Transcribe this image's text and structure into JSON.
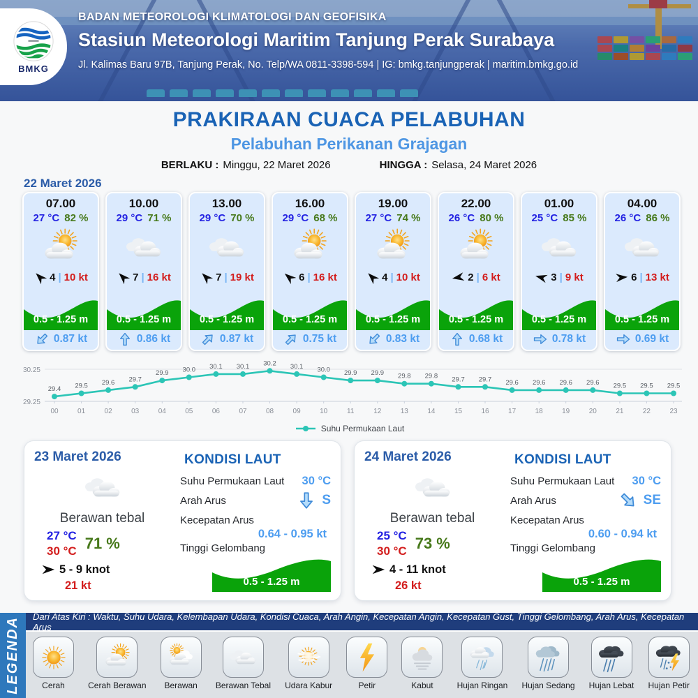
{
  "header": {
    "agency": "BADAN METEOROLOGI KLIMATOLOGI DAN GEOFISIKA",
    "station": "Stasiun Meteorologi Maritim Tanjung Perak Surabaya",
    "contact": "Jl. Kalimas Baru 97B, Tanjung Perak, No. Telp/WA 0811-3398-594 | IG: bmkg.tanjungperak | maritim.bmkg.go.id",
    "logo_text": "BMKG"
  },
  "title": {
    "main": "PRAKIRAAN CUACA PELABUHAN",
    "subtitle": "Pelabuhan Perikanan Grajagan",
    "berlaku_label": "BERLAKU :",
    "berlaku_value": "Minggu, 22 Maret 2026",
    "hingga_label": "HINGGA :",
    "hingga_value": "Selasa, 24 Maret 2026"
  },
  "forecast_date": "22 Maret 2026",
  "hourly_cards": [
    {
      "time": "07.00",
      "temp": "27 °C",
      "humidity": "82 %",
      "icon": "cerah-berawan",
      "wind_deg": 225,
      "wind_speed": "4",
      "gust": "10 kt",
      "wave": "0.5 - 1.25 m",
      "current_deg": 135,
      "current": "0.87 kt"
    },
    {
      "time": "10.00",
      "temp": "29 °C",
      "humidity": "71 %",
      "icon": "berawan-tebal",
      "wind_deg": 225,
      "wind_speed": "7",
      "gust": "16 kt",
      "wave": "0.5 - 1.25 m",
      "current_deg": 270,
      "current": "0.86 kt"
    },
    {
      "time": "13.00",
      "temp": "29 °C",
      "humidity": "70 %",
      "icon": "berawan-tebal",
      "wind_deg": 225,
      "wind_speed": "7",
      "gust": "19 kt",
      "wave": "0.5 - 1.25 m",
      "current_deg": 315,
      "current": "0.87 kt"
    },
    {
      "time": "16.00",
      "temp": "29 °C",
      "humidity": "68 %",
      "icon": "cerah-berawan",
      "wind_deg": 220,
      "wind_speed": "6",
      "gust": "16 kt",
      "wave": "0.5 - 1.25 m",
      "current_deg": 315,
      "current": "0.75 kt"
    },
    {
      "time": "19.00",
      "temp": "27 °C",
      "humidity": "74 %",
      "icon": "cerah-berawan",
      "wind_deg": 225,
      "wind_speed": "4",
      "gust": "10 kt",
      "wave": "0.5 - 1.25 m",
      "current_deg": 135,
      "current": "0.83 kt"
    },
    {
      "time": "22.00",
      "temp": "26 °C",
      "humidity": "80 %",
      "icon": "cerah-berawan",
      "wind_deg": 170,
      "wind_speed": "2",
      "gust": "6 kt",
      "wave": "0.5 - 1.25 m",
      "current_deg": 270,
      "current": "0.68 kt"
    },
    {
      "time": "01.00",
      "temp": "25 °C",
      "humidity": "85 %",
      "icon": "berawan-tebal",
      "wind_deg": 195,
      "wind_speed": "3",
      "gust": "9 kt",
      "wave": "0.5 - 1.25 m",
      "current_deg": 0,
      "current": "0.78 kt"
    },
    {
      "time": "04.00",
      "temp": "26 °C",
      "humidity": "86 %",
      "icon": "berawan-tebal",
      "wind_deg": 355,
      "wind_speed": "6",
      "gust": "13 kt",
      "wave": "0.5 - 1.25 m",
      "current_deg": 0,
      "current": "0.69 kt"
    }
  ],
  "chart_data": {
    "type": "line",
    "x": [
      "00",
      "01",
      "02",
      "03",
      "04",
      "05",
      "06",
      "07",
      "08",
      "09",
      "10",
      "11",
      "12",
      "13",
      "14",
      "15",
      "16",
      "17",
      "18",
      "19",
      "20",
      "21",
      "22",
      "23"
    ],
    "series": [
      {
        "name": "Suhu Permukaan Laut",
        "values": [
          29.4,
          29.5,
          29.6,
          29.7,
          29.9,
          30.0,
          30.1,
          30.1,
          30.2,
          30.1,
          30.0,
          29.9,
          29.9,
          29.8,
          29.8,
          29.7,
          29.7,
          29.6,
          29.6,
          29.6,
          29.6,
          29.5,
          29.5,
          29.5
        ]
      }
    ],
    "ylim": [
      29.25,
      30.25
    ],
    "line_color": "#2cc5b6",
    "legend_position": "bottom",
    "grid": "horizontal-only"
  },
  "day_cards": [
    {
      "date": "23 Maret 2026",
      "icon": "berawan-tebal",
      "condition": "Berawan tebal",
      "temp_min": "27 °C",
      "temp_max": "30 °C",
      "humidity": "71 %",
      "wind_range": "5  - 9 knot",
      "gust": "21 kt",
      "sea": {
        "heading": "KONDISI LAUT",
        "sst_label": "Suhu Permukaan Laut",
        "sst": "30 °C",
        "arah_label": "Arah Arus",
        "arah": "S",
        "arah_deg": 90,
        "kecepatan_label": "Kecepatan Arus",
        "kecepatan": "0.64  - 0.95 kt",
        "gelombang_label": "Tinggi Gelombang",
        "gelombang": "0.5 - 1.25 m"
      }
    },
    {
      "date": "24 Maret 2026",
      "icon": "berawan-tebal",
      "condition": "Berawan tebal",
      "temp_min": "25 °C",
      "temp_max": "30 °C",
      "humidity": "73 %",
      "wind_range": "4  - 11 knot",
      "gust": "26 kt",
      "sea": {
        "heading": "KONDISI LAUT",
        "sst_label": "Suhu Permukaan Laut",
        "sst": "30 °C",
        "arah_label": "Arah Arus",
        "arah": "SE",
        "arah_deg": 45,
        "kecepatan_label": "Kecepatan Arus",
        "kecepatan": "0.60 - 0.94 kt",
        "gelombang_label": "Tinggi Gelombang",
        "gelombang": "0.5 - 1.25 m"
      }
    }
  ],
  "legend": {
    "ribbon": "LEGENDA",
    "note": "Dari Atas Kiri : Waktu, Suhu Udara, Kelembapan Udara, Kondisi Cuaca, Arah Angin, Kecepatan Angin, Kecepatan Gust, Tinggi Gelombang, Arah Arus, Kecepatan Arus",
    "items": [
      {
        "label": "Cerah",
        "icon": "cerah"
      },
      {
        "label": "Cerah Berawan",
        "icon": "cerah-berawan"
      },
      {
        "label": "Berawan",
        "icon": "berawan"
      },
      {
        "label": "Berawan Tebal",
        "icon": "berawan-tebal"
      },
      {
        "label": "Udara Kabur",
        "icon": "udara-kabur"
      },
      {
        "label": "Petir",
        "icon": "petir"
      },
      {
        "label": "Kabut",
        "icon": "kabut"
      },
      {
        "label": "Hujan Ringan",
        "icon": "hujan-ringan"
      },
      {
        "label": "Hujan Sedang",
        "icon": "hujan-sedang"
      },
      {
        "label": "Hujan Lebat",
        "icon": "hujan-lebat"
      },
      {
        "label": "Hujan Petir",
        "icon": "hujan-petir"
      }
    ]
  },
  "colors": {
    "title_blue": "#1a63b5",
    "subtitle_blue": "#4e96e3",
    "temp_blue": "#2322e2",
    "humidity_green": "#47791b",
    "gust_red": "#d31d1d",
    "wave_green": "#0aa30a",
    "current_blue": "#4d9df0",
    "chart_teal": "#2cc5b6",
    "navy_bar": "#1f3d7c",
    "ribbon_blue": "#2e78bc"
  }
}
